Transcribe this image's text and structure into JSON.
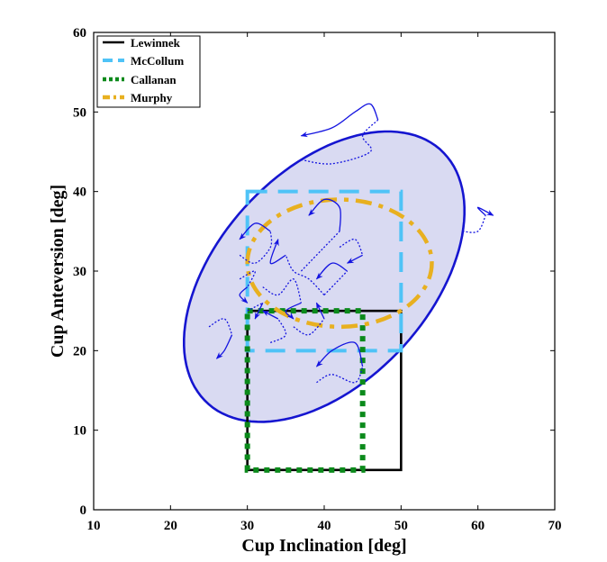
{
  "chart_data": {
    "type": "line",
    "xlabel": "Cup Inclination [deg]",
    "ylabel": "Cup Anteversion [deg]",
    "xlim": [
      10,
      70
    ],
    "ylim": [
      0,
      60
    ],
    "xticks": [
      10,
      20,
      30,
      40,
      50,
      60,
      70
    ],
    "yticks": [
      0,
      10,
      20,
      30,
      40,
      50,
      60
    ],
    "grid": false,
    "legend_position": "top-left",
    "zones": [
      {
        "name": "Lewinnek",
        "shape": "rectangle",
        "color": "#000000",
        "style": "solid",
        "x_range": [
          30,
          50
        ],
        "y_range": [
          5,
          25
        ]
      },
      {
        "name": "McCollum",
        "shape": "rectangle",
        "color": "#4FC3F7",
        "style": "dashed",
        "x_range": [
          30,
          50
        ],
        "y_range": [
          20,
          40
        ]
      },
      {
        "name": "Callanan",
        "shape": "rectangle",
        "color": "#0B8A1B",
        "style": "dotted",
        "x_range": [
          30,
          45
        ],
        "y_range": [
          5,
          25
        ]
      },
      {
        "name": "Murphy",
        "shape": "ellipse",
        "color": "#E8B020",
        "style": "dash-dot",
        "center": [
          42,
          31
        ],
        "radii": [
          12,
          8
        ]
      }
    ],
    "confidence_ellipse": {
      "color": "#1515D0",
      "fill": "#D9DAF2",
      "center": [
        40,
        29.3
      ],
      "semi_major": 22,
      "semi_minor": 13.5,
      "angle_deg": 45
    },
    "trajectories_color": "#1414E0",
    "trajectories": [
      {
        "x": [
          37,
          41,
          46,
          45,
          47,
          46,
          44,
          41,
          37
        ],
        "y": [
          44,
          43.5,
          45,
          47,
          49,
          51,
          50,
          48,
          47
        ]
      },
      {
        "x": [
          58,
          60,
          61,
          60,
          62
        ],
        "y": [
          35,
          35,
          37,
          38,
          37
        ]
      },
      {
        "x": [
          40,
          38,
          36,
          35,
          33,
          34
        ],
        "y": [
          27,
          29,
          30,
          32,
          31,
          34
        ]
      },
      {
        "x": [
          37,
          38,
          40,
          42,
          42,
          40,
          38
        ],
        "y": [
          30,
          31,
          33,
          35,
          38,
          39,
          37
        ]
      },
      {
        "x": [
          29,
          31,
          33,
          33,
          31,
          29
        ],
        "y": [
          32,
          31,
          33,
          35,
          36,
          34
        ]
      },
      {
        "x": [
          32,
          34,
          36,
          37,
          35,
          36
        ],
        "y": [
          28,
          27,
          29,
          26,
          25,
          24
        ]
      },
      {
        "x": [
          25,
          27,
          28,
          27,
          26
        ],
        "y": [
          23,
          24,
          22,
          20,
          19
        ]
      },
      {
        "x": [
          29,
          31,
          30,
          29,
          30
        ],
        "y": [
          29,
          30,
          28,
          27,
          26
        ]
      },
      {
        "x": [
          40,
          42,
          43,
          41,
          39
        ],
        "y": [
          27,
          29,
          30,
          31,
          29
        ]
      },
      {
        "x": [
          39,
          41,
          44,
          45,
          44,
          41,
          39
        ],
        "y": [
          16,
          17,
          16,
          18,
          21,
          20,
          18
        ]
      },
      {
        "x": [
          36,
          38,
          40,
          39
        ],
        "y": [
          23,
          22,
          24,
          26
        ]
      },
      {
        "x": [
          33,
          35,
          34,
          32
        ],
        "y": [
          21,
          22,
          24,
          25
        ]
      },
      {
        "x": [
          42,
          44,
          45,
          43
        ],
        "y": [
          33,
          34,
          32,
          31
        ]
      },
      {
        "x": [
          30,
          32,
          31
        ],
        "y": [
          25,
          26,
          24
        ]
      }
    ]
  }
}
